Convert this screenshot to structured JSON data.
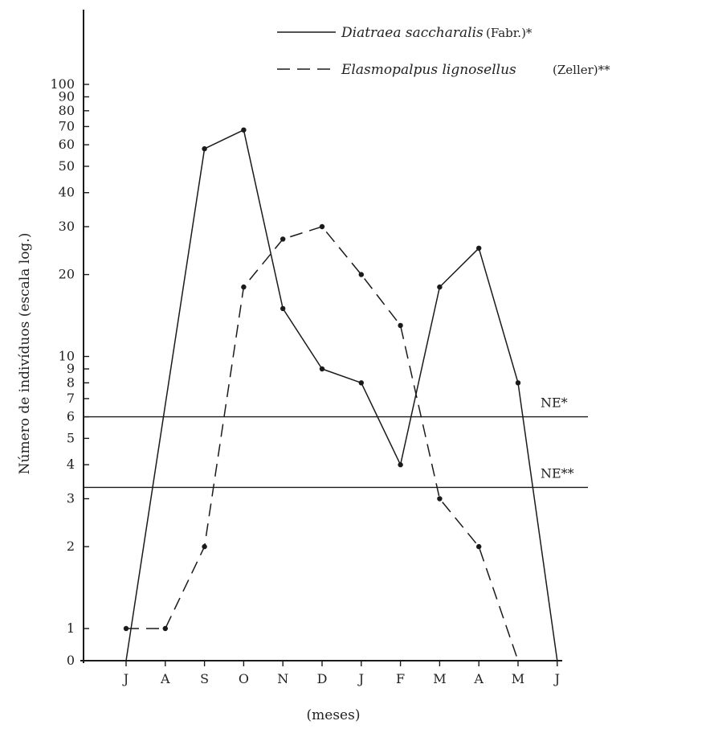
{
  "chart_data": {
    "type": "line",
    "ylabel": "Número de indivíduos (escala log.)",
    "xlabel": "(meses)",
    "y_scale": "log",
    "y_ticks": [
      {
        "label": "0",
        "value": 0
      },
      {
        "label": "1",
        "value": 1
      },
      {
        "label": "2",
        "value": 2
      },
      {
        "label": "3",
        "value": 3
      },
      {
        "label": "4",
        "value": 4
      },
      {
        "label": "5",
        "value": 5
      },
      {
        "label": "6",
        "value": 6
      },
      {
        "label": "7",
        "value": 7
      },
      {
        "label": "8",
        "value": 8
      },
      {
        "label": "9",
        "value": 9
      },
      {
        "label": "10",
        "value": 10
      },
      {
        "label": "20",
        "value": 20
      },
      {
        "label": "30",
        "value": 30
      },
      {
        "label": "40",
        "value": 40
      },
      {
        "label": "50",
        "value": 50
      },
      {
        "label": "60",
        "value": 60
      },
      {
        "label": "70",
        "value": 70
      },
      {
        "label": "80",
        "value": 80
      },
      {
        "label": "90",
        "value": 90
      },
      {
        "label": "100",
        "value": 100
      }
    ],
    "categories": [
      "J",
      "A",
      "S",
      "O",
      "N",
      "D",
      "J",
      "F",
      "M",
      "A",
      "M",
      "J"
    ],
    "series": [
      {
        "name": "Diatraea saccharalis",
        "author": "(Fabr.)*",
        "style": "solid",
        "values": [
          0,
          null,
          58,
          68,
          15,
          9,
          8,
          4,
          18,
          25,
          8,
          0
        ]
      },
      {
        "name": "Elasmopalpus lignosellus",
        "author": "(Zeller)**",
        "style": "dashed",
        "values": [
          1,
          1,
          2,
          18,
          27,
          30,
          20,
          13,
          3,
          2,
          0,
          null
        ]
      }
    ],
    "thresholds": [
      {
        "label": "NE*",
        "value": 6
      },
      {
        "label": "NE**",
        "value": 3.3
      }
    ],
    "grid": false,
    "legend_position": "top-right"
  }
}
